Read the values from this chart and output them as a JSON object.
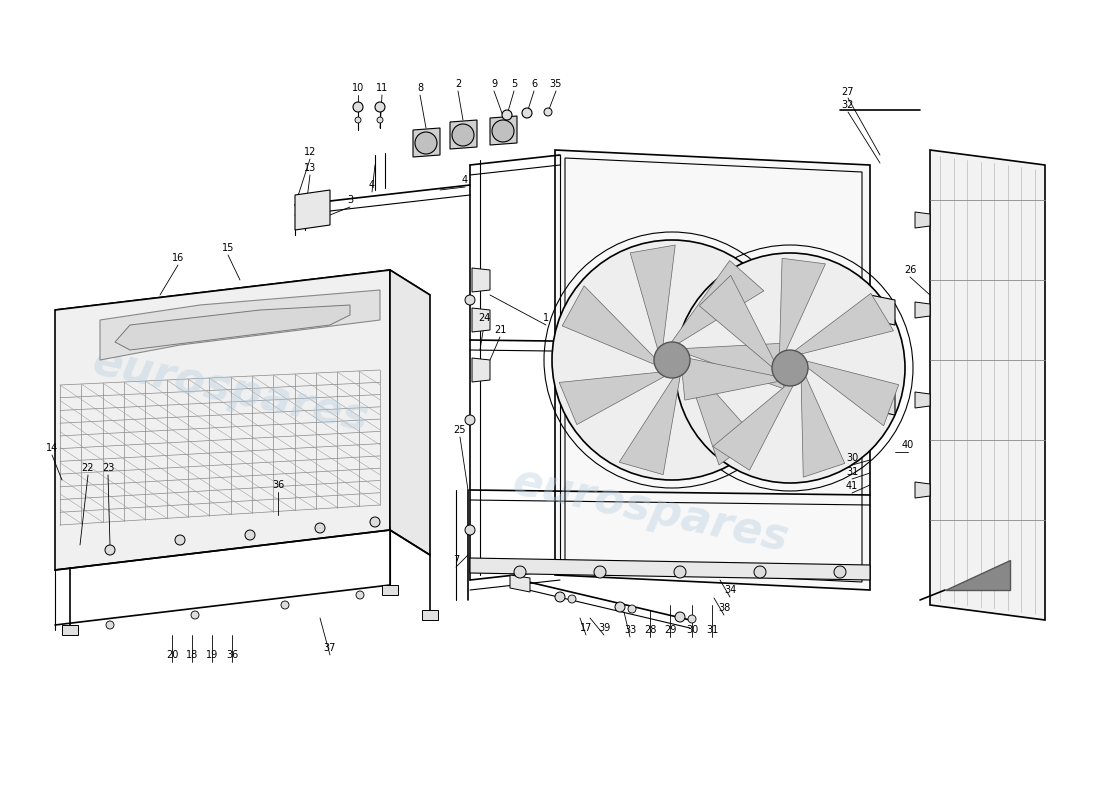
{
  "bg_color": "#ffffff",
  "watermark_text": "eurospares",
  "fig_width": 11.0,
  "fig_height": 8.0,
  "line_color": "#000000",
  "label_color": "#000000",
  "label_fontsize": 7.0
}
